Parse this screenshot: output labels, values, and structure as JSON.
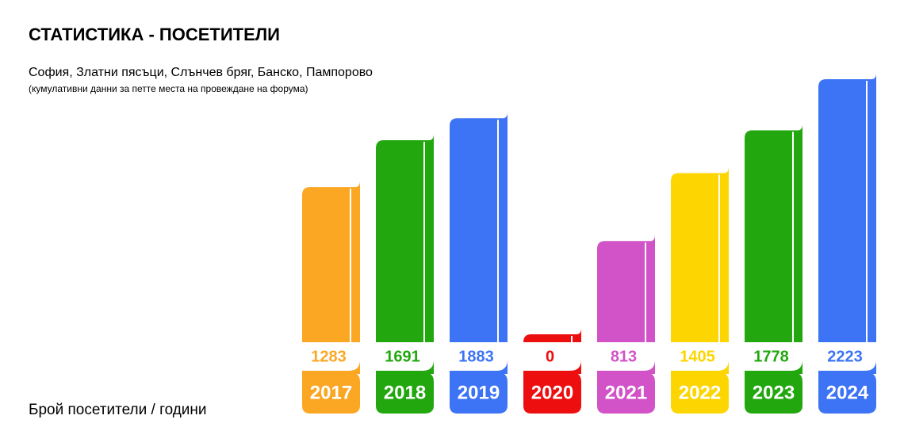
{
  "chart_data": {
    "type": "bar",
    "title": "СТАТИСТИКА - ПОСЕТИТЕЛИ",
    "subtitle": "София, Златни пясъци, Слънчев бряг, Банско, Пампорово",
    "note": "(кумулативни данни за петте места на провеждане на форума)",
    "axis_label": "Брой  посетители / години",
    "categories": [
      "2017",
      "2018",
      "2019",
      "2020",
      "2021",
      "2022",
      "2023",
      "2024"
    ],
    "values": [
      1283,
      1691,
      1883,
      0,
      813,
      1405,
      1778,
      2223
    ],
    "colors": [
      "#fba724",
      "#22a70f",
      "#3d73f5",
      "#ed0f0f",
      "#d252c8",
      "#fdd500",
      "#22a70f",
      "#3d73f5"
    ]
  }
}
